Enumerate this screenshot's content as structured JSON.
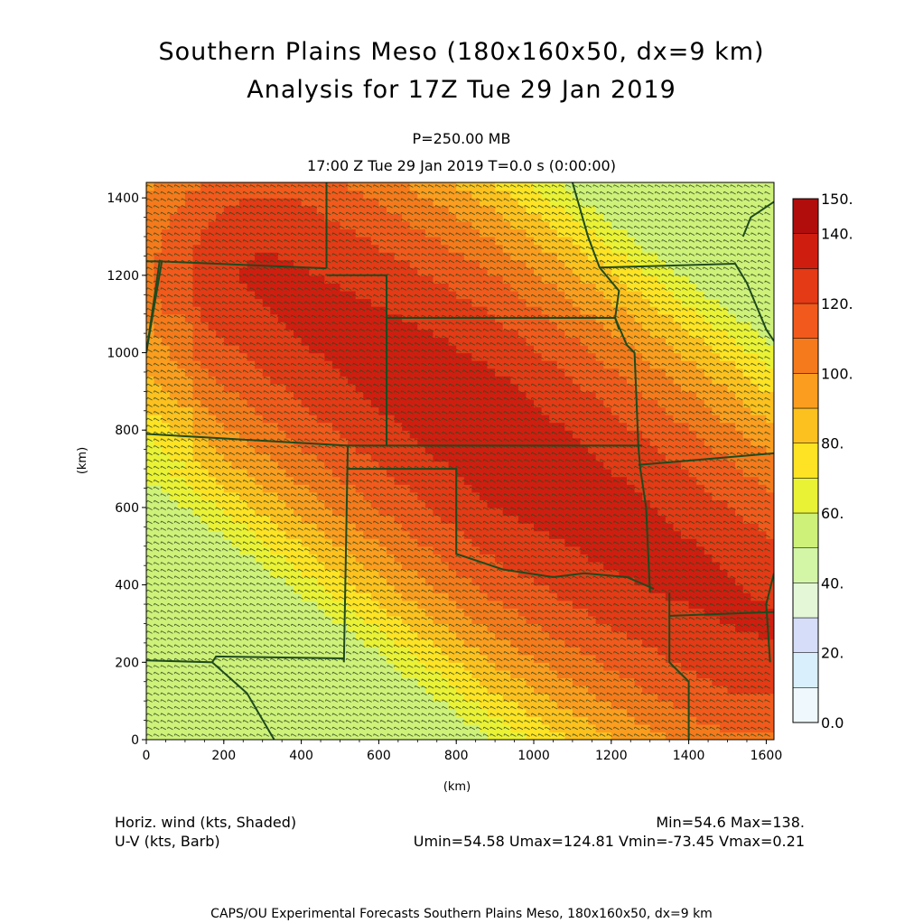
{
  "title_line1": "Southern Plains Meso (180x160x50, dx=9 km)",
  "title_line2": "Analysis for 17Z Tue 29 Jan 2019",
  "level_label": "P=250.00 MB",
  "time_label": "17:00 Z Tue 29 Jan 2019    T=0.0 s (0:00:00)",
  "field_shaded": "Horiz. wind (kts, Shaded)",
  "field_barb": "U-V (kts, Barb)",
  "minmax": "Min=54.6 Max=138.",
  "uv_minmax": "Umin=54.58 Umax=124.81 Vmin=-73.45 Vmax=0.21",
  "footer": "CAPS/OU Experimental Forecasts  Southern Plains Meso, 180x160x50, dx=9 km",
  "chart_data": {
    "type": "heatmap",
    "xlabel": "(km)",
    "ylabel": "(km)",
    "xlim": [
      0,
      1620
    ],
    "ylim": [
      0,
      1440
    ],
    "x_ticks": [
      "0",
      "200",
      "400",
      "600",
      "800",
      "1000",
      "1200",
      "1400",
      "1600"
    ],
    "y_ticks": [
      "0",
      "200",
      "400",
      "600",
      "800",
      "1000",
      "1200",
      "1400"
    ],
    "field_min": 54.6,
    "field_max": 138,
    "jet_axis_km": [
      [
        300,
        1200
      ],
      [
        800,
        850
      ],
      [
        1300,
        500
      ],
      [
        1600,
        300
      ]
    ],
    "colorbar": {
      "labels": [
        "0.0",
        "20.",
        "40.",
        "60.",
        "80.",
        "100.",
        "120.",
        "140.",
        "150."
      ],
      "bins": [
        {
          "lower": 0,
          "upper": 10,
          "color": "#eef8fd"
        },
        {
          "lower": 10,
          "upper": 20,
          "color": "#d9effb"
        },
        {
          "lower": 20,
          "upper": 30,
          "color": "#d5ddf8"
        },
        {
          "lower": 30,
          "upper": 40,
          "color": "#e4f8d8"
        },
        {
          "lower": 40,
          "upper": 50,
          "color": "#d2f6a6"
        },
        {
          "lower": 50,
          "upper": 60,
          "color": "#cef17a"
        },
        {
          "lower": 60,
          "upper": 70,
          "color": "#eaf236"
        },
        {
          "lower": 70,
          "upper": 80,
          "color": "#fde324"
        },
        {
          "lower": 80,
          "upper": 90,
          "color": "#fdc11f"
        },
        {
          "lower": 90,
          "upper": 100,
          "color": "#fb9d1f"
        },
        {
          "lower": 100,
          "upper": 110,
          "color": "#f57a1c"
        },
        {
          "lower": 110,
          "upper": 120,
          "color": "#f15a1c"
        },
        {
          "lower": 120,
          "upper": 130,
          "color": "#e43a16"
        },
        {
          "lower": 130,
          "upper": 140,
          "color": "#cf1e10"
        },
        {
          "lower": 140,
          "upper": 150,
          "color": "#b10d0d"
        }
      ]
    },
    "boundary_color": "#1f4a1f",
    "barb_color": "#304a20"
  }
}
